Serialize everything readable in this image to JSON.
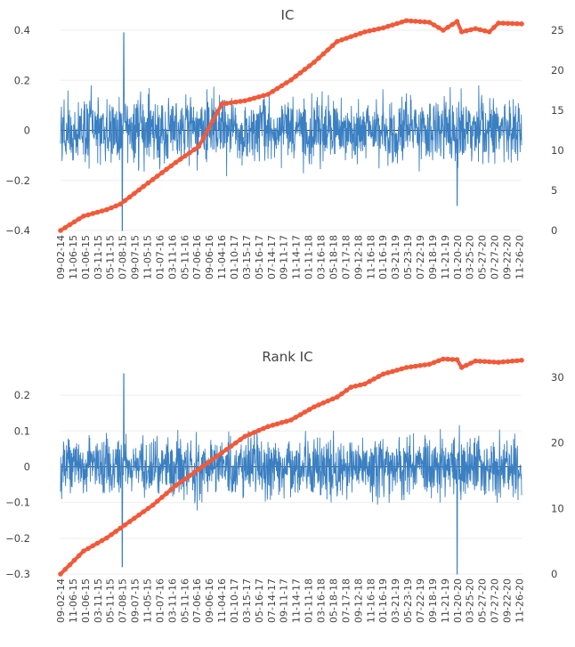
{
  "chart_data": [
    {
      "type": "line",
      "title": "IC",
      "x_tick_labels": [
        "09-02-14",
        "11-06-15",
        "01-06-15",
        "03-11-15",
        "05-11-15",
        "07-08-15",
        "09-07-15",
        "11-05-15",
        "01-07-16",
        "03-11-16",
        "05-11-16",
        "07-06-16",
        "09-06-16",
        "11-04-16",
        "01-10-17",
        "03-15-17",
        "05-16-17",
        "07-14-17",
        "09-11-17",
        "11-14-17",
        "01-11-18",
        "03-16-18",
        "05-18-18",
        "07-17-18",
        "09-12-18",
        "11-16-18",
        "01-16-19",
        "03-21-19",
        "05-23-19",
        "07-22-19",
        "09-18-19",
        "11-21-19",
        "01-20-20",
        "03-25-20",
        "05-27-20",
        "07-27-20",
        "09-22-20",
        "11-26-20"
      ],
      "y_left": {
        "range": [
          -0.4,
          0.4
        ],
        "ticks": [
          "0.4",
          "0.2",
          "0",
          "−0.2",
          "−0.4"
        ],
        "tick_values": [
          0.4,
          0.2,
          0,
          -0.2,
          -0.4
        ]
      },
      "y_right": {
        "range": [
          0,
          25
        ],
        "ticks": [
          "25",
          "20",
          "15",
          "10",
          "5",
          "0"
        ],
        "tick_values": [
          25,
          20,
          15,
          10,
          5,
          0
        ]
      },
      "series": [
        {
          "style": "daily-bars-left-axis",
          "color": "#3a7fc1",
          "points": 1550,
          "amplitude": 0.12,
          "spikes": [
            [
              0.137,
              0.39
            ],
            [
              0.134,
              -0.4
            ],
            [
              0.86,
              -0.3
            ]
          ]
        },
        {
          "style": "cumulative-right-axis",
          "color": "#f05a3a",
          "x_frac": [
            0.0,
            0.05,
            0.1,
            0.13,
            0.18,
            0.25,
            0.3,
            0.35,
            0.4,
            0.45,
            0.5,
            0.55,
            0.6,
            0.63,
            0.66,
            0.7,
            0.75,
            0.8,
            0.83,
            0.86,
            0.87,
            0.9,
            0.93,
            0.95,
            1.0
          ],
          "y": [
            0.0,
            1.8,
            2.6,
            3.3,
            5.5,
            8.5,
            10.5,
            15.8,
            16.2,
            17.0,
            18.8,
            21.0,
            23.6,
            24.2,
            24.8,
            25.3,
            26.2,
            26.0,
            25.0,
            26.1,
            24.8,
            25.2,
            24.8,
            25.9,
            25.8
          ]
        }
      ]
    },
    {
      "type": "line",
      "title": "Rank IC",
      "x_tick_labels": [
        "09-02-14",
        "11-06-15",
        "01-06-15",
        "03-11-15",
        "05-11-15",
        "07-08-15",
        "09-07-15",
        "11-05-15",
        "01-07-16",
        "03-11-16",
        "05-11-16",
        "07-06-16",
        "09-06-16",
        "11-04-16",
        "01-10-17",
        "03-15-17",
        "05-16-17",
        "07-14-17",
        "09-11-17",
        "11-14-17",
        "01-11-18",
        "03-16-18",
        "05-18-18",
        "07-17-18",
        "09-12-18",
        "11-16-18",
        "01-16-19",
        "03-21-19",
        "05-23-19",
        "07-22-19",
        "09-18-19",
        "11-21-19",
        "01-20-20",
        "03-25-20",
        "05-27-20",
        "07-27-20",
        "09-22-20",
        "11-26-20"
      ],
      "y_left": {
        "range": [
          -0.3,
          0.25
        ],
        "ticks": [
          "0.2",
          "0.1",
          "0",
          "−0.1",
          "−0.2",
          "−0.3"
        ],
        "tick_values": [
          0.2,
          0.1,
          0,
          -0.1,
          -0.2,
          -0.3
        ]
      },
      "y_right": {
        "range": [
          0,
          30
        ],
        "ticks": [
          "30",
          "20",
          "10",
          "0"
        ],
        "tick_values": [
          30,
          20,
          10,
          0
        ]
      },
      "series": [
        {
          "style": "daily-bars-left-axis",
          "color": "#3a7fc1",
          "points": 1550,
          "amplitude": 0.08,
          "spikes": [
            [
              0.137,
              0.26
            ],
            [
              0.134,
              -0.28
            ],
            [
              0.86,
              -0.3
            ]
          ]
        },
        {
          "style": "cumulative-right-axis",
          "color": "#f05a3a",
          "x_frac": [
            0.0,
            0.05,
            0.1,
            0.13,
            0.2,
            0.25,
            0.3,
            0.35,
            0.4,
            0.45,
            0.5,
            0.55,
            0.6,
            0.63,
            0.66,
            0.7,
            0.75,
            0.8,
            0.83,
            0.86,
            0.87,
            0.9,
            0.95,
            1.0
          ],
          "y": [
            0.0,
            3.5,
            5.5,
            7.0,
            10.5,
            13.5,
            16.0,
            18.5,
            21.0,
            22.5,
            23.5,
            25.5,
            27.0,
            28.5,
            29.0,
            30.5,
            31.5,
            32.0,
            32.8,
            32.7,
            31.5,
            32.5,
            32.3,
            32.6
          ]
        }
      ]
    }
  ]
}
